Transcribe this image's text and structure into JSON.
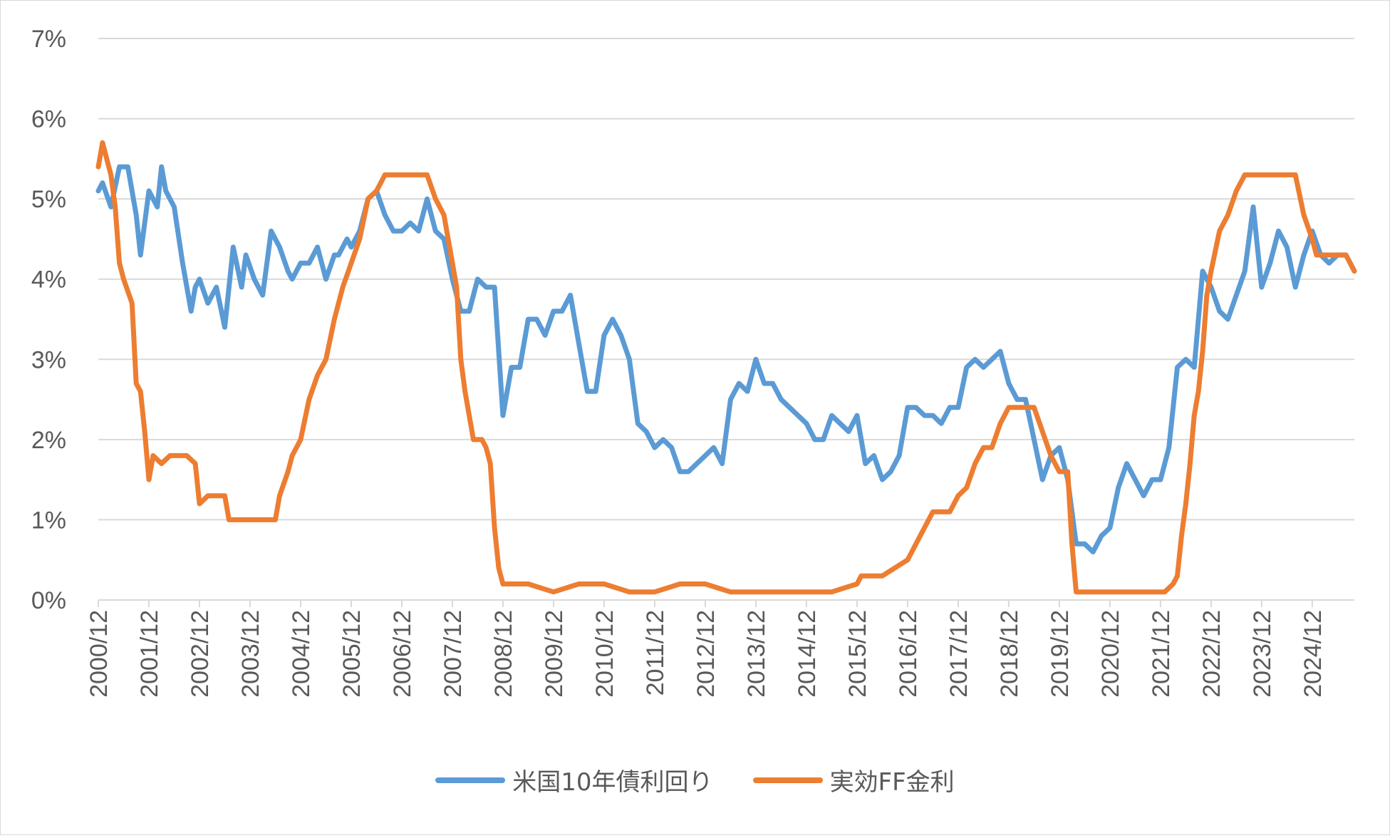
{
  "chart_data": {
    "type": "line",
    "title": "",
    "xlabel": "",
    "ylabel": "",
    "ylim": [
      0,
      7
    ],
    "y_ticks": [
      "0%",
      "1%",
      "2%",
      "3%",
      "4%",
      "5%",
      "6%",
      "7%"
    ],
    "x_ticks": [
      "2000/12",
      "2001/12",
      "2002/12",
      "2003/12",
      "2004/12",
      "2005/12",
      "2006/12",
      "2007/12",
      "2008/12",
      "2009/12",
      "2010/12",
      "2011/12",
      "2012/12",
      "2013/12",
      "2014/12",
      "2015/12",
      "2016/12",
      "2017/12",
      "2018/12",
      "2019/12",
      "2020/12",
      "2021/12",
      "2022/12",
      "2023/12",
      "2024/12"
    ],
    "x_range": [
      "2000/12",
      "2025/10"
    ],
    "grid": "horizontal",
    "legend_position": "bottom",
    "series": [
      {
        "name": "米国10年債利回り",
        "color": "#5B9BD5",
        "points": [
          [
            "2000/12",
            5.1
          ],
          [
            "2001/01",
            5.2
          ],
          [
            "2001/03",
            4.9
          ],
          [
            "2001/05",
            5.4
          ],
          [
            "2001/07",
            5.4
          ],
          [
            "2001/09",
            4.8
          ],
          [
            "2001/10",
            4.3
          ],
          [
            "2001/12",
            5.1
          ],
          [
            "2002/02",
            4.9
          ],
          [
            "2002/03",
            5.4
          ],
          [
            "2002/04",
            5.1
          ],
          [
            "2002/06",
            4.9
          ],
          [
            "2002/08",
            4.2
          ],
          [
            "2002/10",
            3.6
          ],
          [
            "2002/11",
            3.9
          ],
          [
            "2002/12",
            4.0
          ],
          [
            "2003/02",
            3.7
          ],
          [
            "2003/04",
            3.9
          ],
          [
            "2003/06",
            3.4
          ],
          [
            "2003/08",
            4.4
          ],
          [
            "2003/10",
            3.9
          ],
          [
            "2003/11",
            4.3
          ],
          [
            "2004/01",
            4.0
          ],
          [
            "2004/03",
            3.8
          ],
          [
            "2004/05",
            4.6
          ],
          [
            "2004/07",
            4.4
          ],
          [
            "2004/09",
            4.1
          ],
          [
            "2004/10",
            4.0
          ],
          [
            "2004/12",
            4.2
          ],
          [
            "2005/02",
            4.2
          ],
          [
            "2005/04",
            4.4
          ],
          [
            "2005/06",
            4.0
          ],
          [
            "2005/08",
            4.3
          ],
          [
            "2005/09",
            4.3
          ],
          [
            "2005/11",
            4.5
          ],
          [
            "2005/12",
            4.4
          ],
          [
            "2006/02",
            4.6
          ],
          [
            "2006/04",
            5.0
          ],
          [
            "2006/06",
            5.1
          ],
          [
            "2006/08",
            4.8
          ],
          [
            "2006/10",
            4.6
          ],
          [
            "2006/12",
            4.6
          ],
          [
            "2007/02",
            4.7
          ],
          [
            "2007/04",
            4.6
          ],
          [
            "2007/06",
            5.0
          ],
          [
            "2007/08",
            4.6
          ],
          [
            "2007/10",
            4.5
          ],
          [
            "2007/12",
            4.0
          ],
          [
            "2008/02",
            3.6
          ],
          [
            "2008/04",
            3.6
          ],
          [
            "2008/06",
            4.0
          ],
          [
            "2008/08",
            3.9
          ],
          [
            "2008/10",
            3.9
          ],
          [
            "2008/12",
            2.3
          ],
          [
            "2009/02",
            2.9
          ],
          [
            "2009/04",
            2.9
          ],
          [
            "2009/06",
            3.5
          ],
          [
            "2009/08",
            3.5
          ],
          [
            "2009/10",
            3.3
          ],
          [
            "2009/12",
            3.6
          ],
          [
            "2010/02",
            3.6
          ],
          [
            "2010/04",
            3.8
          ],
          [
            "2010/06",
            3.2
          ],
          [
            "2010/08",
            2.6
          ],
          [
            "2010/10",
            2.6
          ],
          [
            "2010/12",
            3.3
          ],
          [
            "2011/02",
            3.5
          ],
          [
            "2011/04",
            3.3
          ],
          [
            "2011/06",
            3.0
          ],
          [
            "2011/08",
            2.2
          ],
          [
            "2011/10",
            2.1
          ],
          [
            "2011/12",
            1.9
          ],
          [
            "2012/02",
            2.0
          ],
          [
            "2012/04",
            1.9
          ],
          [
            "2012/06",
            1.6
          ],
          [
            "2012/08",
            1.6
          ],
          [
            "2012/10",
            1.7
          ],
          [
            "2012/12",
            1.8
          ],
          [
            "2013/02",
            1.9
          ],
          [
            "2013/04",
            1.7
          ],
          [
            "2013/06",
            2.5
          ],
          [
            "2013/08",
            2.7
          ],
          [
            "2013/10",
            2.6
          ],
          [
            "2013/12",
            3.0
          ],
          [
            "2014/02",
            2.7
          ],
          [
            "2014/04",
            2.7
          ],
          [
            "2014/06",
            2.5
          ],
          [
            "2014/08",
            2.4
          ],
          [
            "2014/10",
            2.3
          ],
          [
            "2014/12",
            2.2
          ],
          [
            "2015/02",
            2.0
          ],
          [
            "2015/04",
            2.0
          ],
          [
            "2015/06",
            2.3
          ],
          [
            "2015/08",
            2.2
          ],
          [
            "2015/10",
            2.1
          ],
          [
            "2015/12",
            2.3
          ],
          [
            "2016/02",
            1.7
          ],
          [
            "2016/04",
            1.8
          ],
          [
            "2016/06",
            1.5
          ],
          [
            "2016/08",
            1.6
          ],
          [
            "2016/10",
            1.8
          ],
          [
            "2016/12",
            2.4
          ],
          [
            "2017/02",
            2.4
          ],
          [
            "2017/04",
            2.3
          ],
          [
            "2017/06",
            2.3
          ],
          [
            "2017/08",
            2.2
          ],
          [
            "2017/10",
            2.4
          ],
          [
            "2017/12",
            2.4
          ],
          [
            "2018/02",
            2.9
          ],
          [
            "2018/04",
            3.0
          ],
          [
            "2018/06",
            2.9
          ],
          [
            "2018/08",
            3.0
          ],
          [
            "2018/10",
            3.1
          ],
          [
            "2018/12",
            2.7
          ],
          [
            "2019/02",
            2.5
          ],
          [
            "2019/04",
            2.5
          ],
          [
            "2019/06",
            2.0
          ],
          [
            "2019/08",
            1.5
          ],
          [
            "2019/10",
            1.8
          ],
          [
            "2019/12",
            1.9
          ],
          [
            "2020/02",
            1.5
          ],
          [
            "2020/04",
            0.7
          ],
          [
            "2020/06",
            0.7
          ],
          [
            "2020/08",
            0.6
          ],
          [
            "2020/10",
            0.8
          ],
          [
            "2020/12",
            0.9
          ],
          [
            "2021/02",
            1.4
          ],
          [
            "2021/04",
            1.7
          ],
          [
            "2021/06",
            1.5
          ],
          [
            "2021/08",
            1.3
          ],
          [
            "2021/10",
            1.5
          ],
          [
            "2021/12",
            1.5
          ],
          [
            "2022/02",
            1.9
          ],
          [
            "2022/04",
            2.9
          ],
          [
            "2022/06",
            3.0
          ],
          [
            "2022/08",
            2.9
          ],
          [
            "2022/10",
            4.1
          ],
          [
            "2022/12",
            3.9
          ],
          [
            "2023/02",
            3.6
          ],
          [
            "2023/04",
            3.5
          ],
          [
            "2023/06",
            3.8
          ],
          [
            "2023/08",
            4.1
          ],
          [
            "2023/10",
            4.9
          ],
          [
            "2023/12",
            3.9
          ],
          [
            "2024/02",
            4.2
          ],
          [
            "2024/04",
            4.6
          ],
          [
            "2024/06",
            4.4
          ],
          [
            "2024/08",
            3.9
          ],
          [
            "2024/10",
            4.3
          ],
          [
            "2024/12",
            4.6
          ],
          [
            "2025/02",
            4.3
          ],
          [
            "2025/04",
            4.2
          ],
          [
            "2025/06",
            4.3
          ],
          [
            "2025/08",
            4.3
          ],
          [
            "2025/10",
            4.1
          ]
        ]
      },
      {
        "name": "実効FF金利",
        "color": "#ED7D31",
        "points": [
          [
            "2000/12",
            5.4
          ],
          [
            "2001/01",
            5.7
          ],
          [
            "2001/02",
            5.5
          ],
          [
            "2001/03",
            5.3
          ],
          [
            "2001/04",
            4.9
          ],
          [
            "2001/05",
            4.2
          ],
          [
            "2001/06",
            4.0
          ],
          [
            "2001/08",
            3.7
          ],
          [
            "2001/09",
            2.7
          ],
          [
            "2001/10",
            2.6
          ],
          [
            "2001/11",
            2.1
          ],
          [
            "2001/12",
            1.5
          ],
          [
            "2002/01",
            1.8
          ],
          [
            "2002/03",
            1.7
          ],
          [
            "2002/05",
            1.8
          ],
          [
            "2002/07",
            1.8
          ],
          [
            "2002/09",
            1.8
          ],
          [
            "2002/11",
            1.7
          ],
          [
            "2002/12",
            1.2
          ],
          [
            "2003/02",
            1.3
          ],
          [
            "2003/04",
            1.3
          ],
          [
            "2003/06",
            1.3
          ],
          [
            "2003/07",
            1.0
          ],
          [
            "2003/09",
            1.0
          ],
          [
            "2003/11",
            1.0
          ],
          [
            "2003/12",
            1.0
          ],
          [
            "2004/02",
            1.0
          ],
          [
            "2004/04",
            1.0
          ],
          [
            "2004/06",
            1.0
          ],
          [
            "2004/07",
            1.3
          ],
          [
            "2004/09",
            1.6
          ],
          [
            "2004/10",
            1.8
          ],
          [
            "2004/12",
            2.0
          ],
          [
            "2005/02",
            2.5
          ],
          [
            "2005/04",
            2.8
          ],
          [
            "2005/06",
            3.0
          ],
          [
            "2005/08",
            3.5
          ],
          [
            "2005/10",
            3.9
          ],
          [
            "2005/12",
            4.2
          ],
          [
            "2006/02",
            4.5
          ],
          [
            "2006/04",
            5.0
          ],
          [
            "2006/06",
            5.1
          ],
          [
            "2006/08",
            5.3
          ],
          [
            "2006/10",
            5.3
          ],
          [
            "2006/12",
            5.3
          ],
          [
            "2007/02",
            5.3
          ],
          [
            "2007/04",
            5.3
          ],
          [
            "2007/06",
            5.3
          ],
          [
            "2007/08",
            5.0
          ],
          [
            "2007/10",
            4.8
          ],
          [
            "2007/12",
            4.2
          ],
          [
            "2008/01",
            3.9
          ],
          [
            "2008/02",
            3.0
          ],
          [
            "2008/03",
            2.6
          ],
          [
            "2008/04",
            2.3
          ],
          [
            "2008/05",
            2.0
          ],
          [
            "2008/06",
            2.0
          ],
          [
            "2008/07",
            2.0
          ],
          [
            "2008/08",
            1.9
          ],
          [
            "2008/09",
            1.7
          ],
          [
            "2008/10",
            0.9
          ],
          [
            "2008/11",
            0.4
          ],
          [
            "2008/12",
            0.2
          ],
          [
            "2009/02",
            0.2
          ],
          [
            "2009/06",
            0.2
          ],
          [
            "2009/12",
            0.1
          ],
          [
            "2010/06",
            0.2
          ],
          [
            "2010/12",
            0.2
          ],
          [
            "2011/06",
            0.1
          ],
          [
            "2011/12",
            0.1
          ],
          [
            "2012/06",
            0.2
          ],
          [
            "2012/12",
            0.2
          ],
          [
            "2013/06",
            0.1
          ],
          [
            "2013/12",
            0.1
          ],
          [
            "2014/06",
            0.1
          ],
          [
            "2014/12",
            0.1
          ],
          [
            "2015/06",
            0.1
          ],
          [
            "2015/12",
            0.2
          ],
          [
            "2016/01",
            0.3
          ],
          [
            "2016/06",
            0.3
          ],
          [
            "2016/12",
            0.5
          ],
          [
            "2017/01",
            0.6
          ],
          [
            "2017/03",
            0.8
          ],
          [
            "2017/05",
            1.0
          ],
          [
            "2017/06",
            1.1
          ],
          [
            "2017/08",
            1.1
          ],
          [
            "2017/10",
            1.1
          ],
          [
            "2017/12",
            1.3
          ],
          [
            "2018/02",
            1.4
          ],
          [
            "2018/04",
            1.7
          ],
          [
            "2018/06",
            1.9
          ],
          [
            "2018/08",
            1.9
          ],
          [
            "2018/10",
            2.2
          ],
          [
            "2018/12",
            2.4
          ],
          [
            "2019/02",
            2.4
          ],
          [
            "2019/04",
            2.4
          ],
          [
            "2019/06",
            2.4
          ],
          [
            "2019/08",
            2.1
          ],
          [
            "2019/10",
            1.8
          ],
          [
            "2019/12",
            1.6
          ],
          [
            "2020/01",
            1.6
          ],
          [
            "2020/02",
            1.6
          ],
          [
            "2020/03",
            0.7
          ],
          [
            "2020/04",
            0.1
          ],
          [
            "2020/06",
            0.1
          ],
          [
            "2020/12",
            0.1
          ],
          [
            "2021/06",
            0.1
          ],
          [
            "2021/12",
            0.1
          ],
          [
            "2022/01",
            0.1
          ],
          [
            "2022/03",
            0.2
          ],
          [
            "2022/04",
            0.3
          ],
          [
            "2022/05",
            0.8
          ],
          [
            "2022/06",
            1.2
          ],
          [
            "2022/07",
            1.7
          ],
          [
            "2022/08",
            2.3
          ],
          [
            "2022/09",
            2.6
          ],
          [
            "2022/10",
            3.1
          ],
          [
            "2022/11",
            3.8
          ],
          [
            "2022/12",
            4.1
          ],
          [
            "2023/02",
            4.6
          ],
          [
            "2023/04",
            4.8
          ],
          [
            "2023/06",
            5.1
          ],
          [
            "2023/08",
            5.3
          ],
          [
            "2023/10",
            5.3
          ],
          [
            "2023/12",
            5.3
          ],
          [
            "2024/06",
            5.3
          ],
          [
            "2024/08",
            5.3
          ],
          [
            "2024/10",
            4.8
          ],
          [
            "2024/12",
            4.5
          ],
          [
            "2025/01",
            4.3
          ],
          [
            "2025/03",
            4.3
          ],
          [
            "2025/06",
            4.3
          ],
          [
            "2025/08",
            4.3
          ],
          [
            "2025/09",
            4.2
          ],
          [
            "2025/10",
            4.1
          ]
        ]
      }
    ]
  }
}
